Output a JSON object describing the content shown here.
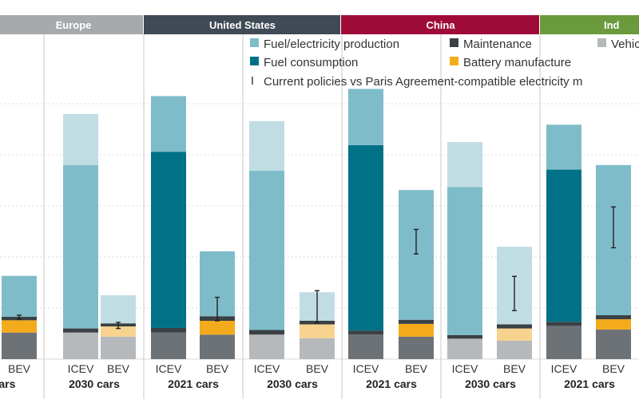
{
  "colors": {
    "fuel_production": "#7fbcca",
    "fuel_production_light": "#c0dde3",
    "fuel_consumption": "#007187",
    "maintenance": "#3a4145",
    "battery": "#f4ab1b",
    "battery_light": "#f7d38f",
    "vehicle": "#6d7276",
    "vehicle_light": "#b6b9bb",
    "europe_band": "#a7aaac",
    "us_band": "#3f4a55",
    "china_band": "#9f0b39",
    "india_band": "#6a9a3b"
  },
  "legend": {
    "items": [
      {
        "label": "Fuel/electricity production",
        "color_key": "fuel_production",
        "shape": "square"
      },
      {
        "label": "Maintenance",
        "color_key": "maintenance",
        "shape": "square"
      },
      {
        "label": "Vehic",
        "color_key": "vehicle_light",
        "shape": "square"
      },
      {
        "label": "Fuel consumption",
        "color_key": "fuel_consumption",
        "shape": "square"
      },
      {
        "label": "Battery manufacture",
        "color_key": "battery",
        "shape": "square"
      },
      {
        "label": "Current policies vs Paris Agreement-compatible electricity m",
        "color_key": "",
        "shape": "errorbar",
        "glyph": "I"
      }
    ]
  },
  "chart_data": {
    "type": "bar",
    "stacked": true,
    "y_axis": {
      "min": 0,
      "max": 500,
      "grid": true,
      "tick_labels_visible": false,
      "gridlines": [
        0,
        100,
        200,
        300,
        400,
        500
      ]
    },
    "regions": [
      {
        "name": "Europe",
        "color_key": "europe_band"
      },
      {
        "name": "United States",
        "color_key": "us_band"
      },
      {
        "name": "China",
        "color_key": "china_band"
      },
      {
        "name": "Ind",
        "color_key": "india_band"
      }
    ],
    "groups": [
      {
        "label": "cars",
        "region": 0
      },
      {
        "label": "2030 cars",
        "region": 0
      },
      {
        "label": "2021 cars",
        "region": 1
      },
      {
        "label": "2030 cars",
        "region": 1
      },
      {
        "label": "2021 cars",
        "region": 2
      },
      {
        "label": "2030 cars",
        "region": 2
      },
      {
        "label": "2021 cars",
        "region": 3
      }
    ],
    "bars": [
      {
        "category": "BEV",
        "group": 0,
        "light": false,
        "segments": {
          "vehicle": 52,
          "battery": 24,
          "maintenance": 7,
          "fuel_consumption": 0,
          "fuel_production": 80
        },
        "error": [
          78,
          86
        ]
      },
      {
        "category": "ICEV",
        "group": 1,
        "light": true,
        "segments": {
          "vehicle": 52,
          "battery": 0,
          "maintenance": 8,
          "fuel_consumption": 0,
          "fuel_production": 320
        },
        "extra": 100
      },
      {
        "category": "BEV",
        "group": 1,
        "light": true,
        "segments": {
          "vehicle": 44,
          "battery": 20,
          "maintenance": 6,
          "fuel_consumption": 0,
          "fuel_production": 55
        },
        "error": [
          60,
          72
        ]
      },
      {
        "category": "ICEV",
        "group": 2,
        "light": false,
        "segments": {
          "vehicle": 52,
          "battery": 0,
          "maintenance": 9,
          "fuel_consumption": 345,
          "fuel_production": 109
        }
      },
      {
        "category": "BEV",
        "group": 2,
        "light": false,
        "segments": {
          "vehicle": 48,
          "battery": 27,
          "maintenance": 9,
          "fuel_consumption": 0,
          "fuel_production": 127
        },
        "error": [
          75,
          121
        ]
      },
      {
        "category": "ICEV",
        "group": 3,
        "light": true,
        "segments": {
          "vehicle": 48,
          "battery": 0,
          "maintenance": 9,
          "fuel_consumption": 0,
          "fuel_production": 312
        },
        "extra": 97
      },
      {
        "category": "BEV",
        "group": 3,
        "light": true,
        "segments": {
          "vehicle": 41,
          "battery": 27,
          "maintenance": 7,
          "fuel_consumption": 0,
          "fuel_production": 56
        },
        "error": [
          71,
          134
        ]
      },
      {
        "category": "ICEV",
        "group": 4,
        "light": false,
        "segments": {
          "vehicle": 48,
          "battery": 0,
          "maintenance": 8,
          "fuel_consumption": 363,
          "fuel_production": 110
        }
      },
      {
        "category": "BEV",
        "group": 4,
        "light": false,
        "segments": {
          "vehicle": 44,
          "battery": 25,
          "maintenance": 8,
          "fuel_consumption": 0,
          "fuel_production": 254
        },
        "error": [
          206,
          254
        ]
      },
      {
        "category": "ICEV",
        "group": 5,
        "light": true,
        "segments": {
          "vehicle": 40,
          "battery": 0,
          "maintenance": 7,
          "fuel_consumption": 0,
          "fuel_production": 290
        },
        "extra": 88
      },
      {
        "category": "BEV",
        "group": 5,
        "light": true,
        "segments": {
          "vehicle": 36,
          "battery": 24,
          "maintenance": 8,
          "fuel_consumption": 0,
          "fuel_production": 152
        },
        "error": [
          95,
          162
        ]
      },
      {
        "category": "ICEV",
        "group": 6,
        "light": false,
        "segments": {
          "vehicle": 65,
          "battery": 0,
          "maintenance": 8,
          "fuel_consumption": 298,
          "fuel_production": 88
        }
      },
      {
        "category": "BEV",
        "group": 6,
        "light": false,
        "segments": {
          "vehicle": 58,
          "battery": 20,
          "maintenance": 8,
          "fuel_consumption": 0,
          "fuel_production": 294
        },
        "error": [
          218,
          298
        ]
      }
    ]
  }
}
